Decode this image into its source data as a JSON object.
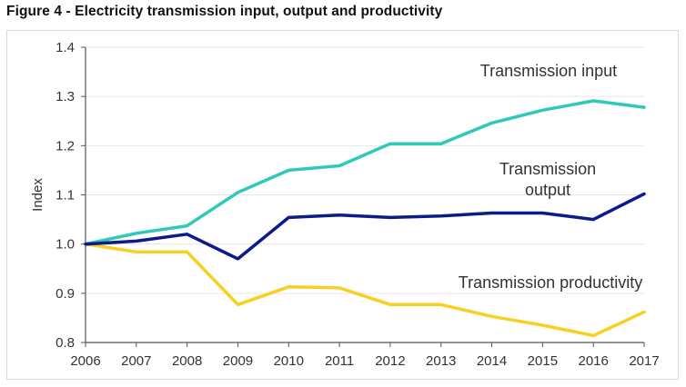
{
  "figure_title": "Figure 4 - Electricity transmission input, output and productivity",
  "chart_data": {
    "type": "line",
    "x": [
      2006,
      2007,
      2008,
      2009,
      2010,
      2011,
      2012,
      2013,
      2014,
      2015,
      2016,
      2017
    ],
    "series": [
      {
        "name": "Transmission input",
        "color": "#2ec9b8",
        "values": [
          1.0,
          1.022,
          1.037,
          1.105,
          1.15,
          1.159,
          1.204,
          1.204,
          1.246,
          1.272,
          1.291,
          1.278
        ]
      },
      {
        "name": "Transmission output",
        "color": "#0d1a8c",
        "values": [
          1.0,
          1.006,
          1.02,
          0.97,
          1.054,
          1.059,
          1.054,
          1.057,
          1.063,
          1.063,
          1.05,
          1.102
        ]
      },
      {
        "name": "Transmission productivity",
        "color": "#f7d023",
        "values": [
          1.0,
          0.984,
          0.984,
          0.877,
          0.913,
          0.911,
          0.877,
          0.877,
          0.853,
          0.835,
          0.814,
          0.862
        ]
      }
    ],
    "annotations": [
      {
        "lines": [
          "Transmission input"
        ]
      },
      {
        "lines": [
          "Transmission",
          "output"
        ]
      },
      {
        "lines": [
          "Transmission productivity"
        ]
      }
    ],
    "ylabel": "Index",
    "ylim": [
      0.8,
      1.4
    ],
    "yticks": [
      "0.8",
      "0.9",
      "1.0",
      "1.1",
      "1.2",
      "1.3",
      "1.4"
    ],
    "xticks": [
      "2006",
      "2007",
      "2008",
      "2009",
      "2010",
      "2011",
      "2012",
      "2013",
      "2014",
      "2015",
      "2016",
      "2017"
    ],
    "grid": true,
    "legend": "none"
  }
}
